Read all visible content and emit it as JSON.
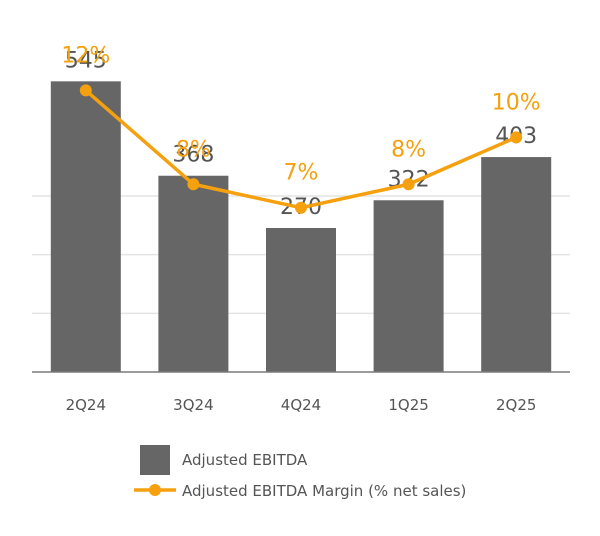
{
  "chart_data": {
    "type": "bar",
    "categories": [
      "2Q24",
      "3Q24",
      "4Q24",
      "1Q25",
      "2Q25"
    ],
    "series": [
      {
        "name": "Adjusted EBITDA",
        "kind": "bar",
        "values": [
          545,
          368,
          270,
          322,
          403
        ],
        "labels": [
          "545",
          "368",
          "270",
          "322",
          "403"
        ],
        "color": "#666666"
      },
      {
        "name": "Adjusted EBITDA Margin (% net sales)",
        "kind": "line",
        "values": [
          12,
          8,
          7,
          8,
          10
        ],
        "labels": [
          "12%",
          "8%",
          "7%",
          "8%",
          "10%"
        ],
        "color": "#f5a00f"
      }
    ],
    "ylim": [
      0,
      660
    ],
    "ylim_secondary": [
      0,
      15
    ],
    "grid": true,
    "legend": "bottom-center"
  }
}
